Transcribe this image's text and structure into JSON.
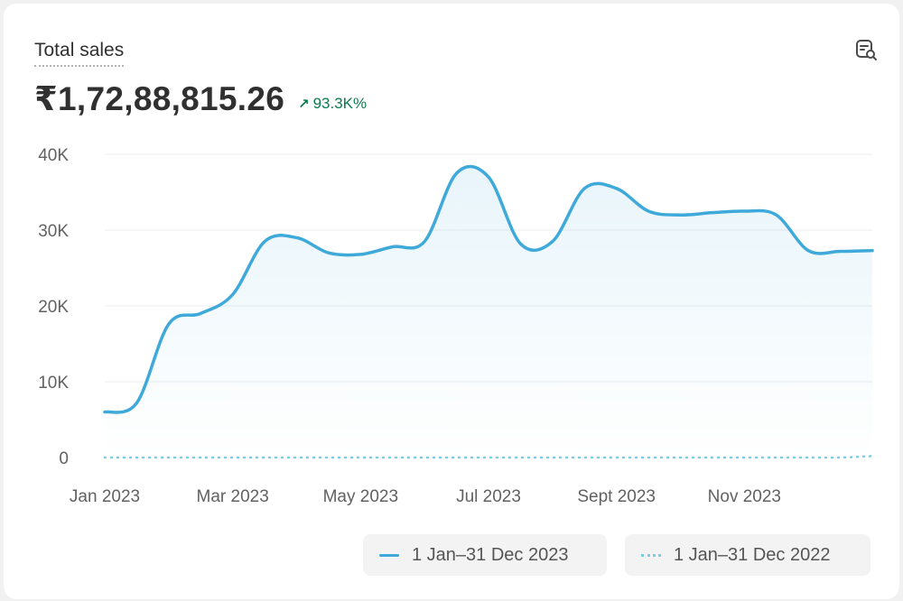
{
  "card": {
    "title": "Total sales",
    "total_value": "₹1,72,88,815.26",
    "change": "93.3K%",
    "icon": "chart-search-icon"
  },
  "colors": {
    "current": "#3fa9d9",
    "previous": "#7dcde0",
    "positive": "#0c7a4d"
  },
  "chart_data": {
    "type": "line",
    "y_ticks": [
      "40K",
      "30K",
      "20K",
      "10K",
      "0"
    ],
    "y_tick_values": [
      40000,
      30000,
      20000,
      10000,
      0
    ],
    "ylim": [
      0,
      40000
    ],
    "x_tick_labels": [
      "Jan 2023",
      "Mar 2023",
      "May 2023",
      "Jul 2023",
      "Sept 2023",
      "Nov 2023"
    ],
    "grid": true,
    "legend_position": "bottom-right",
    "series": [
      {
        "name": "1 Jan–31 Dec 2023",
        "style": "solid",
        "values": [
          6000,
          7200,
          17600,
          19000,
          21500,
          28500,
          29000,
          27000,
          26800,
          27800,
          28500,
          37500,
          37000,
          28200,
          28500,
          35500,
          35500,
          32500,
          32000,
          32300,
          32500,
          32000,
          27300,
          27200,
          27300
        ]
      },
      {
        "name": "1 Jan–31 Dec 2022",
        "style": "dotted",
        "values": [
          0,
          0,
          0,
          0,
          0,
          0,
          0,
          0,
          0,
          0,
          0,
          0,
          0,
          0,
          0,
          0,
          0,
          0,
          0,
          0,
          0,
          0,
          0,
          0,
          200
        ]
      }
    ]
  }
}
